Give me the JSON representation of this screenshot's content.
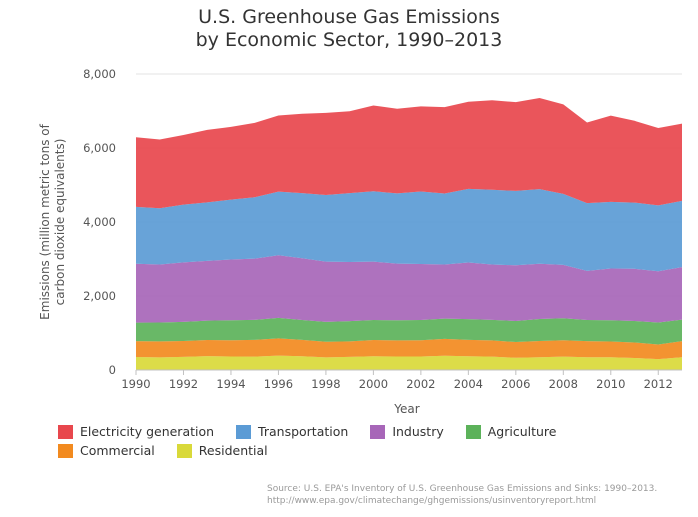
{
  "chart_data": {
    "type": "area",
    "stacked": true,
    "title": "U.S. Greenhouse Gas Emissions",
    "subtitle": "by Economic Sector, 1990–2013",
    "xlabel": "Year",
    "ylabel": "Emissions (million metric tons of carbon dioxide equivalents)",
    "ylabel_lines": [
      "Emissions (million metric tons of",
      "carbon dioxide equivalents)"
    ],
    "ylim": [
      0,
      8000
    ],
    "yticks": [
      0,
      2000,
      4000,
      6000,
      8000
    ],
    "ytick_labels": [
      "0",
      "2,000",
      "4,000",
      "6,000",
      "8,000"
    ],
    "xlim": [
      1990,
      2013
    ],
    "xticks": [
      1990,
      1992,
      1994,
      1996,
      1998,
      2000,
      2002,
      2004,
      2006,
      2008,
      2010,
      2012
    ],
    "x": [
      1990,
      1991,
      1992,
      1993,
      1994,
      1995,
      1996,
      1997,
      1998,
      1999,
      2000,
      2001,
      2002,
      2003,
      2004,
      2005,
      2006,
      2007,
      2008,
      2009,
      2010,
      2011,
      2012,
      2013
    ],
    "grid": "horizontal",
    "legend_position": "bottom",
    "series": [
      {
        "name": "Residential",
        "color": "#d9d93a",
        "values": [
          350,
          340,
          355,
          375,
          365,
          360,
          390,
          370,
          340,
          355,
          370,
          365,
          365,
          385,
          370,
          360,
          330,
          345,
          360,
          345,
          345,
          325,
          295,
          345
        ]
      },
      {
        "name": "Commercial",
        "color": "#f28a1f",
        "values": [
          430,
          435,
          430,
          435,
          440,
          455,
          465,
          445,
          425,
          420,
          440,
          435,
          440,
          455,
          445,
          440,
          425,
          440,
          445,
          435,
          425,
          420,
          395,
          435
        ]
      },
      {
        "name": "Agriculture",
        "color": "#5cb25a",
        "values": [
          500,
          510,
          515,
          525,
          540,
          540,
          555,
          535,
          535,
          545,
          540,
          545,
          545,
          550,
          560,
          555,
          570,
          595,
          595,
          570,
          575,
          580,
          595,
          580
        ]
      },
      {
        "name": "Industry",
        "color": "#a766b8",
        "values": [
          1590,
          1565,
          1610,
          1615,
          1640,
          1655,
          1690,
          1670,
          1630,
          1600,
          1580,
          1530,
          1515,
          1460,
          1530,
          1495,
          1505,
          1490,
          1440,
          1330,
          1400,
          1410,
          1385,
          1420
        ]
      },
      {
        "name": "Transportation",
        "color": "#5b9bd5",
        "values": [
          1540,
          1520,
          1560,
          1580,
          1620,
          1660,
          1720,
          1760,
          1800,
          1860,
          1900,
          1900,
          1960,
          1920,
          1990,
          2020,
          2010,
          2020,
          1920,
          1830,
          1800,
          1790,
          1780,
          1790
        ]
      },
      {
        "name": "Electricity generation",
        "color": "#e8474d",
        "values": [
          1880,
          1860,
          1880,
          1960,
          1965,
          2010,
          2060,
          2145,
          2220,
          2215,
          2320,
          2285,
          2300,
          2335,
          2355,
          2420,
          2400,
          2460,
          2420,
          2180,
          2330,
          2210,
          2090,
          2090
        ]
      }
    ],
    "legend_order": [
      "Electricity generation",
      "Transportation",
      "Industry",
      "Agriculture",
      "Commercial",
      "Residential"
    ]
  },
  "source": {
    "line1": "Source: U.S. EPA's Inventory of U.S. Greenhouse Gas Emissions and Sinks: 1990–2013.",
    "line2": "http://www.epa.gov/climatechange/ghgemissions/usinventoryreport.html"
  }
}
